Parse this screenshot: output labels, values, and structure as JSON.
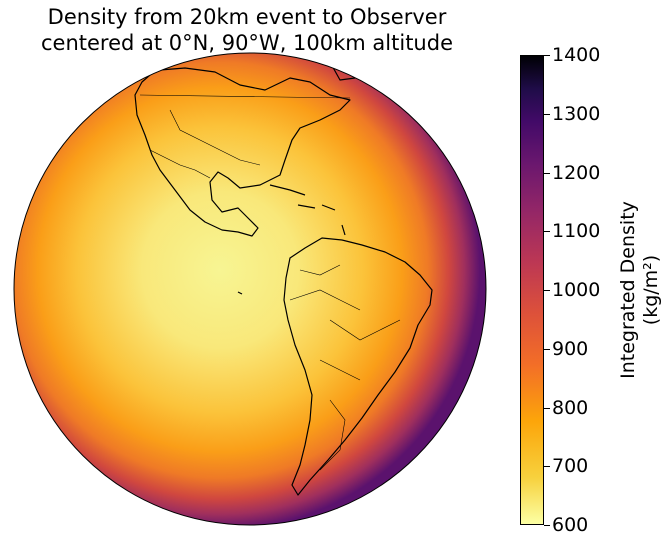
{
  "title": {
    "line1": "Density from 20km event to Observer",
    "line2": "centered at 0°N, 90°W, 100km altitude"
  },
  "colorbar": {
    "label_line1": "Integrated Density",
    "label_line2": "(kg/m²)",
    "ticks": [
      "1400",
      "1300",
      "1200",
      "1100",
      "1000",
      "900",
      "800",
      "700",
      "600"
    ],
    "range": [
      600,
      1400
    ],
    "colormap": "inferno"
  },
  "map": {
    "projection": "orthographic",
    "center": "0°N, 90°W",
    "features": [
      "coastlines",
      "country-borders",
      "state-borders"
    ]
  }
}
